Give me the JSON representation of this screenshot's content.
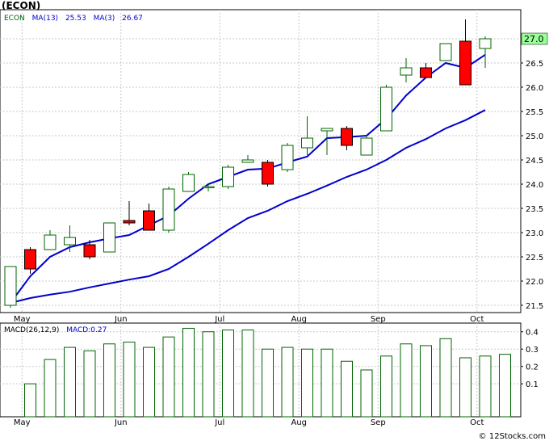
{
  "title": "(ECON)",
  "footer": "© 12Stocks.com",
  "colors": {
    "up_body": "#ffffff",
    "up_outline": "#006400",
    "down_body": "#ff0000",
    "ma_line": "#0000cc",
    "macd_bar": "#006400",
    "grid": "#c8c8c8",
    "last_price_box": "#99ff99"
  },
  "price_legend": {
    "symbol": "ECON",
    "ma13_label": "MA(13)",
    "ma13_value": "25.53",
    "ma3_label": "MA(3)",
    "ma3_value": "26.67"
  },
  "macd_legend": {
    "label": "MACD(26,12,9)",
    "name": "MACD",
    "value": "0.27"
  },
  "last_price_label": "27.0",
  "chart_data": [
    {
      "type": "candlestick",
      "x_labels": [
        "May",
        "Jun",
        "Jul",
        "Aug",
        "Sep",
        "Oct"
      ],
      "x_label_weeks": [
        1,
        6,
        11,
        15,
        19,
        24
      ],
      "ylim": [
        21.35,
        27.6
      ],
      "y_ticks": [
        21.5,
        22.0,
        22.5,
        23.0,
        23.5,
        24.0,
        24.5,
        25.0,
        25.5,
        26.0,
        26.5,
        27.0
      ],
      "y_tick_labels": [
        "21.5",
        "22.0",
        "22.5",
        "23.0",
        "23.5",
        "24.0",
        "24.5",
        "25.0",
        "25.5",
        "26.0",
        "26.5",
        "27.0"
      ],
      "candles": [
        {
          "o": 21.5,
          "h": 22.3,
          "l": 21.45,
          "c": 22.3
        },
        {
          "o": 22.65,
          "h": 22.7,
          "l": 22.15,
          "c": 22.25
        },
        {
          "o": 22.65,
          "h": 23.05,
          "l": 22.65,
          "c": 22.95
        },
        {
          "o": 22.75,
          "h": 23.15,
          "l": 22.6,
          "c": 22.9
        },
        {
          "o": 22.75,
          "h": 22.85,
          "l": 22.45,
          "c": 22.5
        },
        {
          "o": 22.6,
          "h": 23.2,
          "l": 22.6,
          "c": 23.2
        },
        {
          "o": 23.25,
          "h": 23.65,
          "l": 23.15,
          "c": 23.2
        },
        {
          "o": 23.45,
          "h": 23.6,
          "l": 23.05,
          "c": 23.05
        },
        {
          "o": 23.05,
          "h": 23.95,
          "l": 23.0,
          "c": 23.9
        },
        {
          "o": 23.85,
          "h": 24.25,
          "l": 23.85,
          "c": 24.2
        },
        {
          "o": 23.95,
          "h": 24.0,
          "l": 23.85,
          "c": 23.95
        },
        {
          "o": 23.95,
          "h": 24.4,
          "l": 23.9,
          "c": 24.35
        },
        {
          "o": 24.45,
          "h": 24.6,
          "l": 24.45,
          "c": 24.5
        },
        {
          "o": 24.45,
          "h": 24.5,
          "l": 23.95,
          "c": 24.0
        },
        {
          "o": 24.3,
          "h": 24.85,
          "l": 24.25,
          "c": 24.8
        },
        {
          "o": 24.75,
          "h": 25.4,
          "l": 24.6,
          "c": 24.95
        },
        {
          "o": 25.1,
          "h": 25.15,
          "l": 24.6,
          "c": 25.15
        },
        {
          "o": 25.15,
          "h": 25.2,
          "l": 24.7,
          "c": 24.8
        },
        {
          "o": 24.6,
          "h": 25.0,
          "l": 24.6,
          "c": 24.95
        },
        {
          "o": 25.1,
          "h": 26.05,
          "l": 25.1,
          "c": 26.0
        },
        {
          "o": 26.25,
          "h": 26.6,
          "l": 26.1,
          "c": 26.4
        },
        {
          "o": 26.4,
          "h": 26.5,
          "l": 26.2,
          "c": 26.2
        },
        {
          "o": 26.55,
          "h": 26.9,
          "l": 26.55,
          "c": 26.9
        },
        {
          "o": 26.95,
          "h": 27.4,
          "l": 26.05,
          "c": 26.05
        },
        {
          "o": 26.8,
          "h": 27.05,
          "l": 26.4,
          "c": 27.0
        }
      ],
      "ma3": [
        21.55,
        22.1,
        22.5,
        22.7,
        22.8,
        22.88,
        22.95,
        23.15,
        23.35,
        23.7,
        24.0,
        24.15,
        24.3,
        24.32,
        24.45,
        24.57,
        24.95,
        24.97,
        25.0,
        25.35,
        25.83,
        26.2,
        26.5,
        26.4,
        26.67
      ],
      "ma13": [
        21.55,
        21.65,
        21.72,
        21.78,
        21.87,
        21.95,
        22.03,
        22.1,
        22.25,
        22.5,
        22.77,
        23.05,
        23.3,
        23.45,
        23.65,
        23.8,
        23.97,
        24.15,
        24.3,
        24.5,
        24.75,
        24.93,
        25.15,
        25.32,
        25.53
      ]
    },
    {
      "type": "bar",
      "ylim": [
        -0.09,
        0.45
      ],
      "y_ticks": [
        0.1,
        0.2,
        0.3,
        0.4
      ],
      "y_tick_labels": [
        "0.1",
        "0.2",
        "0.3",
        "0.4"
      ],
      "values": [
        0.1,
        0.24,
        0.31,
        0.29,
        0.33,
        0.34,
        0.31,
        0.37,
        0.42,
        0.4,
        0.41,
        0.41,
        0.3,
        0.31,
        0.3,
        0.3,
        0.23,
        0.18,
        0.26,
        0.33,
        0.32,
        0.36,
        0.25,
        0.26,
        0.27
      ]
    }
  ]
}
